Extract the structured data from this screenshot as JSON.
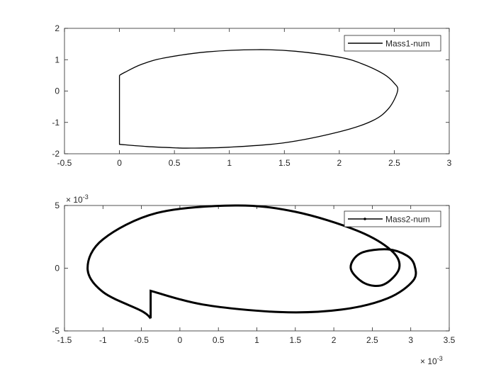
{
  "chart_data": [
    {
      "type": "line",
      "title": "",
      "xlabel": "",
      "ylabel": "",
      "xlim": [
        -0.5,
        3
      ],
      "ylim": [
        -2,
        2
      ],
      "xticks": [
        -0.5,
        0,
        0.5,
        1,
        1.5,
        2,
        2.5,
        3
      ],
      "yticks": [
        -2,
        -1,
        0,
        1,
        2
      ],
      "xtick_labels": [
        "-0.5",
        "0",
        "0.5",
        "1",
        "1.5",
        "2",
        "2.5",
        "3"
      ],
      "ytick_labels": [
        "-2",
        "-1",
        "0",
        "1",
        "2"
      ],
      "legend_position": "top-right",
      "grid": false,
      "series": [
        {
          "name": "Mass1-num",
          "color": "#000000",
          "marker": "none",
          "x": [
            0,
            0,
            0.25,
            0.5,
            0.65,
            1,
            1.5,
            2,
            2.3,
            2.45,
            2.53,
            2.5,
            2.4,
            2.2,
            2,
            1.6,
            1.25,
            0.8,
            0.4,
            0.2,
            0.05,
            0
          ],
          "y": [
            0.5,
            -1.7,
            -1.77,
            -1.81,
            -1.82,
            -1.79,
            -1.65,
            -1.3,
            -0.95,
            -0.55,
            0,
            0.25,
            0.55,
            0.88,
            1.08,
            1.27,
            1.32,
            1.25,
            1.05,
            0.85,
            0.6,
            0.5
          ]
        }
      ]
    },
    {
      "type": "line",
      "title": "",
      "xlabel": "",
      "ylabel": "",
      "x_exponent": "×10^-3",
      "y_exponent": "×10^-3",
      "x_exponent_label": "× 10",
      "y_exponent_label": "× 10",
      "exponent_power": "-3",
      "xlim": [
        -1.5,
        3.5
      ],
      "ylim": [
        -5,
        5
      ],
      "xticks": [
        -1.5,
        -1,
        -0.5,
        0,
        0.5,
        1,
        1.5,
        2,
        2.5,
        3,
        3.5
      ],
      "yticks": [
        -5,
        0,
        5
      ],
      "xtick_labels": [
        "-1.5",
        "-1",
        "-0.5",
        "0",
        "0.5",
        "1",
        "1.5",
        "2",
        "2.5",
        "3",
        "3.5"
      ],
      "ytick_labels": [
        "-5",
        "0",
        "5"
      ],
      "legend_position": "top-right",
      "grid": false,
      "series": [
        {
          "name": "Mass2-num",
          "color": "#000000",
          "marker": "point",
          "x": [
            -0.38,
            -0.38,
            0.3,
            1.3,
            2.1,
            2.7,
            3.03,
            3.05,
            2.95,
            2.7,
            2.35,
            2.22,
            2.4,
            2.65,
            2.85,
            2.75,
            2.3,
            1.5,
            0.72,
            -0.3,
            -1.0,
            -1.2,
            -1.0,
            -0.5,
            -0.38
          ],
          "y": [
            -4.0,
            -1.8,
            -2.9,
            -3.5,
            -3.3,
            -2.4,
            -1.0,
            0.2,
            1.0,
            1.5,
            1.2,
            0.0,
            -1.2,
            -1.3,
            0.0,
            1.4,
            3.0,
            4.5,
            5.0,
            4.4,
            2.3,
            0.0,
            -1.9,
            -3.4,
            -4.0
          ]
        }
      ]
    }
  ]
}
